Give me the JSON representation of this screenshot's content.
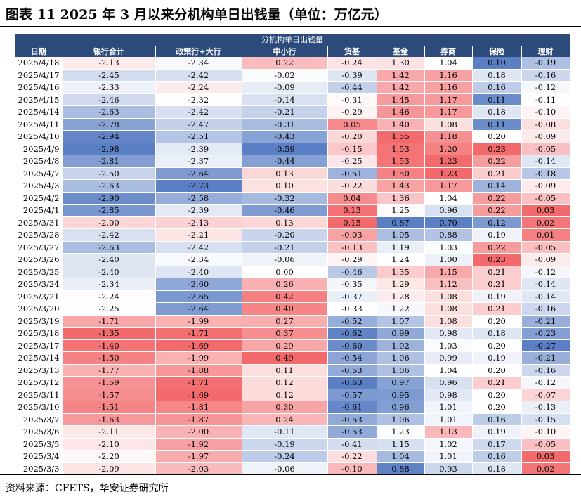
{
  "title": "图表 11 2025 年 3 月以来分机构单日出钱量（单位：万亿元）",
  "banner": "分机构单日出钱量",
  "columns": [
    "日期",
    "银行合计",
    "政策行+大行",
    "中小行",
    "货基",
    "基金",
    "券商",
    "保险",
    "理财"
  ],
  "rows": [
    [
      "2025/4/18",
      "-2.13",
      "-2.34",
      "0.22",
      "-0.24",
      "1.30",
      "1.04",
      "0.10",
      "-0.19"
    ],
    [
      "2025/4/17",
      "-2.45",
      "-2.42",
      "-0.02",
      "-0.39",
      "1.42",
      "1.16",
      "0.18",
      "-0.16"
    ],
    [
      "2025/4/16",
      "-2.33",
      "-2.24",
      "-0.09",
      "-0.44",
      "1.42",
      "1.16",
      "0.16",
      "-0.12"
    ],
    [
      "2025/4/15",
      "-2.46",
      "-2.32",
      "-0.14",
      "-0.31",
      "1.45",
      "1.17",
      "0.11",
      "-0.11"
    ],
    [
      "2025/4/14",
      "-2.63",
      "-2.42",
      "-0.21",
      "-0.29",
      "1.46",
      "1.17",
      "0.18",
      "-0.10"
    ],
    [
      "2025/4/11",
      "-2.78",
      "-2.47",
      "-0.31",
      "0.05",
      "1.40",
      "1.08",
      "0.11",
      "-0.08"
    ],
    [
      "2025/4/10",
      "-2.94",
      "-2.51",
      "-0.43",
      "-0.20",
      "1.55",
      "1.18",
      "0.20",
      "-0.09"
    ],
    [
      "2025/4/9",
      "-2.98",
      "-2.39",
      "-0.59",
      "-0.15",
      "1.53",
      "1.20",
      "0.23",
      "-0.05"
    ],
    [
      "2025/4/8",
      "-2.81",
      "-2.37",
      "-0.44",
      "-0.25",
      "1.53",
      "1.23",
      "0.22",
      "-0.14"
    ],
    [
      "2025/4/7",
      "-2.50",
      "-2.64",
      "0.13",
      "-0.51",
      "1.50",
      "1.23",
      "0.21",
      "-0.18"
    ],
    [
      "2025/4/3",
      "-2.63",
      "-2.73",
      "0.10",
      "-0.22",
      "1.43",
      "1.17",
      "0.14",
      "-0.09"
    ],
    [
      "2025/4/2",
      "-2.90",
      "-2.58",
      "-0.32",
      "0.04",
      "1.36",
      "1.04",
      "0.22",
      "-0.05"
    ],
    [
      "2025/4/1",
      "-2.85",
      "-2.39",
      "-0.46",
      "0.13",
      "1.25",
      "0.96",
      "0.22",
      "0.03"
    ],
    [
      "2025/3/31",
      "-2.00",
      "-2.13",
      "0.13",
      "0.15",
      "0.87",
      "0.70",
      "0.12",
      "0.02"
    ],
    [
      "2025/3/28",
      "-2.42",
      "-2.21",
      "-0.20",
      "-0.03",
      "1.05",
      "0.88",
      "0.19",
      "0.01"
    ],
    [
      "2025/3/27",
      "-2.63",
      "-2.42",
      "-0.21",
      "-0.13",
      "1.19",
      "1.03",
      "0.22",
      "-0.05"
    ],
    [
      "2025/3/26",
      "-2.40",
      "-2.34",
      "-0.06",
      "-0.29",
      "1.24",
      "1.00",
      "0.23",
      "-0.09"
    ],
    [
      "2025/3/25",
      "-2.40",
      "-2.40",
      "0.00",
      "-0.46",
      "1.35",
      "1.15",
      "0.21",
      "-0.12"
    ],
    [
      "2025/3/24",
      "-2.34",
      "-2.60",
      "0.26",
      "-0.35",
      "1.29",
      "1.12",
      "0.21",
      "-0.14"
    ],
    [
      "2025/3/21",
      "-2.24",
      "-2.65",
      "0.42",
      "-0.37",
      "1.28",
      "1.08",
      "0.19",
      "-0.14"
    ],
    [
      "2025/3/20",
      "-2.25",
      "-2.64",
      "0.40",
      "-0.33",
      "1.22",
      "1.08",
      "0.21",
      "-0.16"
    ],
    [
      "2025/3/19",
      "-1.71",
      "-1.99",
      "0.27",
      "-0.52",
      "1.07",
      "1.08",
      "0.20",
      "-0.21"
    ],
    [
      "2025/3/18",
      "-1.35",
      "-1.71",
      "0.37",
      "-0.62",
      "0.99",
      "0.98",
      "0.18",
      "-0.23"
    ],
    [
      "2025/3/17",
      "-1.40",
      "-1.69",
      "0.29",
      "-0.60",
      "1.02",
      "1.03",
      "0.20",
      "-0.27"
    ],
    [
      "2025/3/14",
      "-1.50",
      "-1.99",
      "0.49",
      "-0.54",
      "1.06",
      "0.99",
      "0.19",
      "-0.21"
    ],
    [
      "2025/3/13",
      "-1.77",
      "-1.88",
      "0.11",
      "-0.53",
      "1.06",
      "1.04",
      "0.20",
      "-0.16"
    ],
    [
      "2025/3/12",
      "-1.59",
      "-1.71",
      "0.12",
      "-0.63",
      "0.97",
      "0.96",
      "0.21",
      "-0.12"
    ],
    [
      "2025/3/11",
      "-1.57",
      "-1.69",
      "0.12",
      "-0.57",
      "0.95",
      "0.98",
      "0.20",
      "-0.07"
    ],
    [
      "2025/3/10",
      "-1.51",
      "-1.81",
      "0.30",
      "-0.61",
      "0.96",
      "1.01",
      "0.20",
      "-0.13"
    ],
    [
      "2025/3/7",
      "-1.63",
      "-1.87",
      "0.24",
      "-0.53",
      "1.06",
      "1.01",
      "0.16",
      "-0.15"
    ],
    [
      "2025/3/6",
      "-2.11",
      "-2.00",
      "-0.11",
      "-0.53",
      "1.23",
      "1.13",
      "0.19",
      "-0.10"
    ],
    [
      "2025/3/5",
      "-2.10",
      "-1.92",
      "-0.19",
      "-0.41",
      "1.15",
      "1.02",
      "0.17",
      "-0.05"
    ],
    [
      "2025/3/4",
      "-2.20",
      "-1.97",
      "-0.24",
      "-0.22",
      "1.04",
      "1.01",
      "0.16",
      "0.03"
    ],
    [
      "2025/3/3",
      "-2.09",
      "-2.03",
      "-0.06",
      "-0.10",
      "0.88",
      "0.93",
      "0.18",
      "0.02"
    ]
  ],
  "colors": {
    "header_bg": "#2c4a7a",
    "low": "#5b7fc4",
    "mid": "#ffffff",
    "high": "#f36a6c"
  },
  "source": "资料来源：CFETS，华安证券研究所"
}
